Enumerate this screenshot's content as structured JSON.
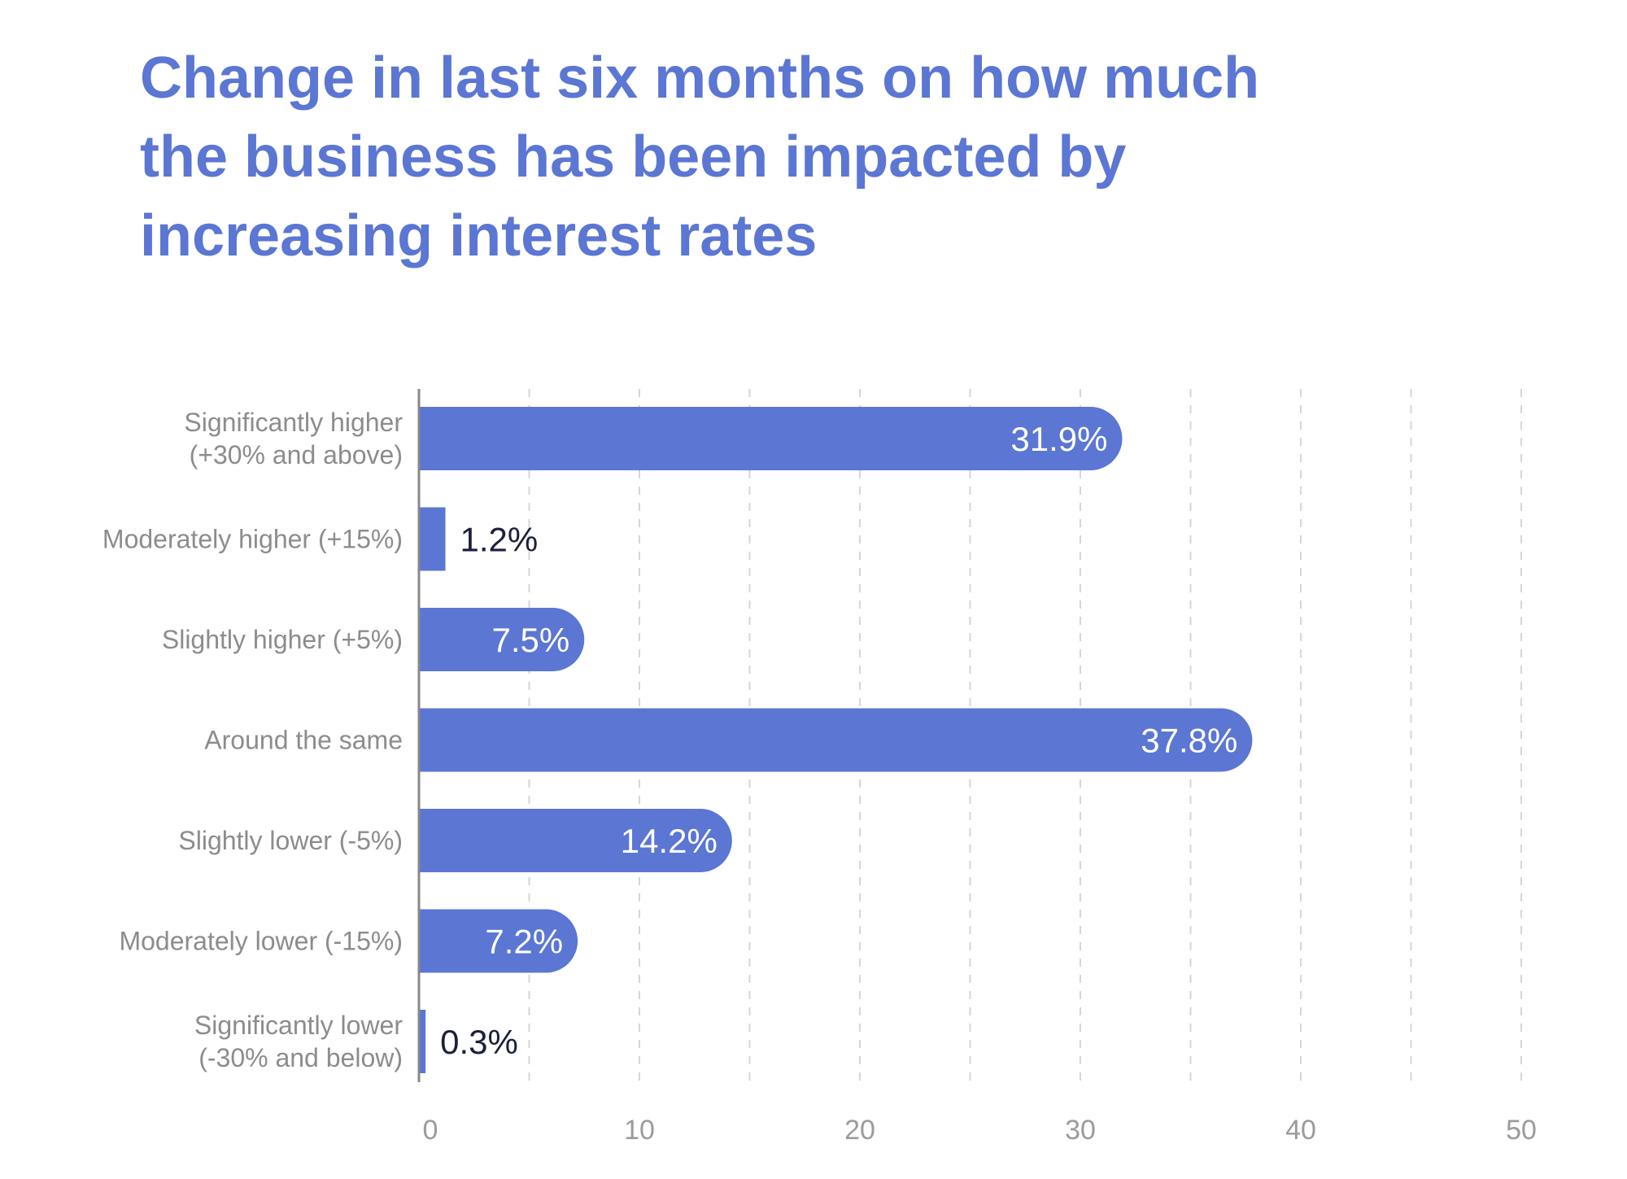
{
  "chart_data": {
    "type": "bar",
    "orientation": "horizontal",
    "title": "Change in last six months on how much the business has been impacted by increasing interest rates",
    "xlabel": "",
    "ylabel": "",
    "xlim": [
      0,
      50
    ],
    "x_ticks": [
      0,
      10,
      20,
      30,
      40,
      50
    ],
    "grid": "vertical dashed",
    "categories": [
      [
        "Significantly higher",
        "(+30% and above)"
      ],
      [
        "Moderately higher (+15%)"
      ],
      [
        "Slightly higher (+5%)"
      ],
      [
        "Around the same"
      ],
      [
        "Slightly lower (-5%)"
      ],
      [
        "Moderately lower (-15%)"
      ],
      [
        "Significantly lower",
        "(-30% and below)"
      ]
    ],
    "values": [
      31.9,
      1.2,
      7.5,
      37.8,
      14.2,
      7.2,
      0.3
    ],
    "value_labels": [
      "31.9%",
      "1.2%",
      "7.5%",
      "37.8%",
      "14.2%",
      "7.2%",
      "0.3%"
    ],
    "bar_color": "#5b76d3",
    "label_color_inside": "#ffffff",
    "label_color_outside": "#1b1f3b",
    "axis_color": "#888888",
    "grid_color": "#d6d6d6"
  }
}
